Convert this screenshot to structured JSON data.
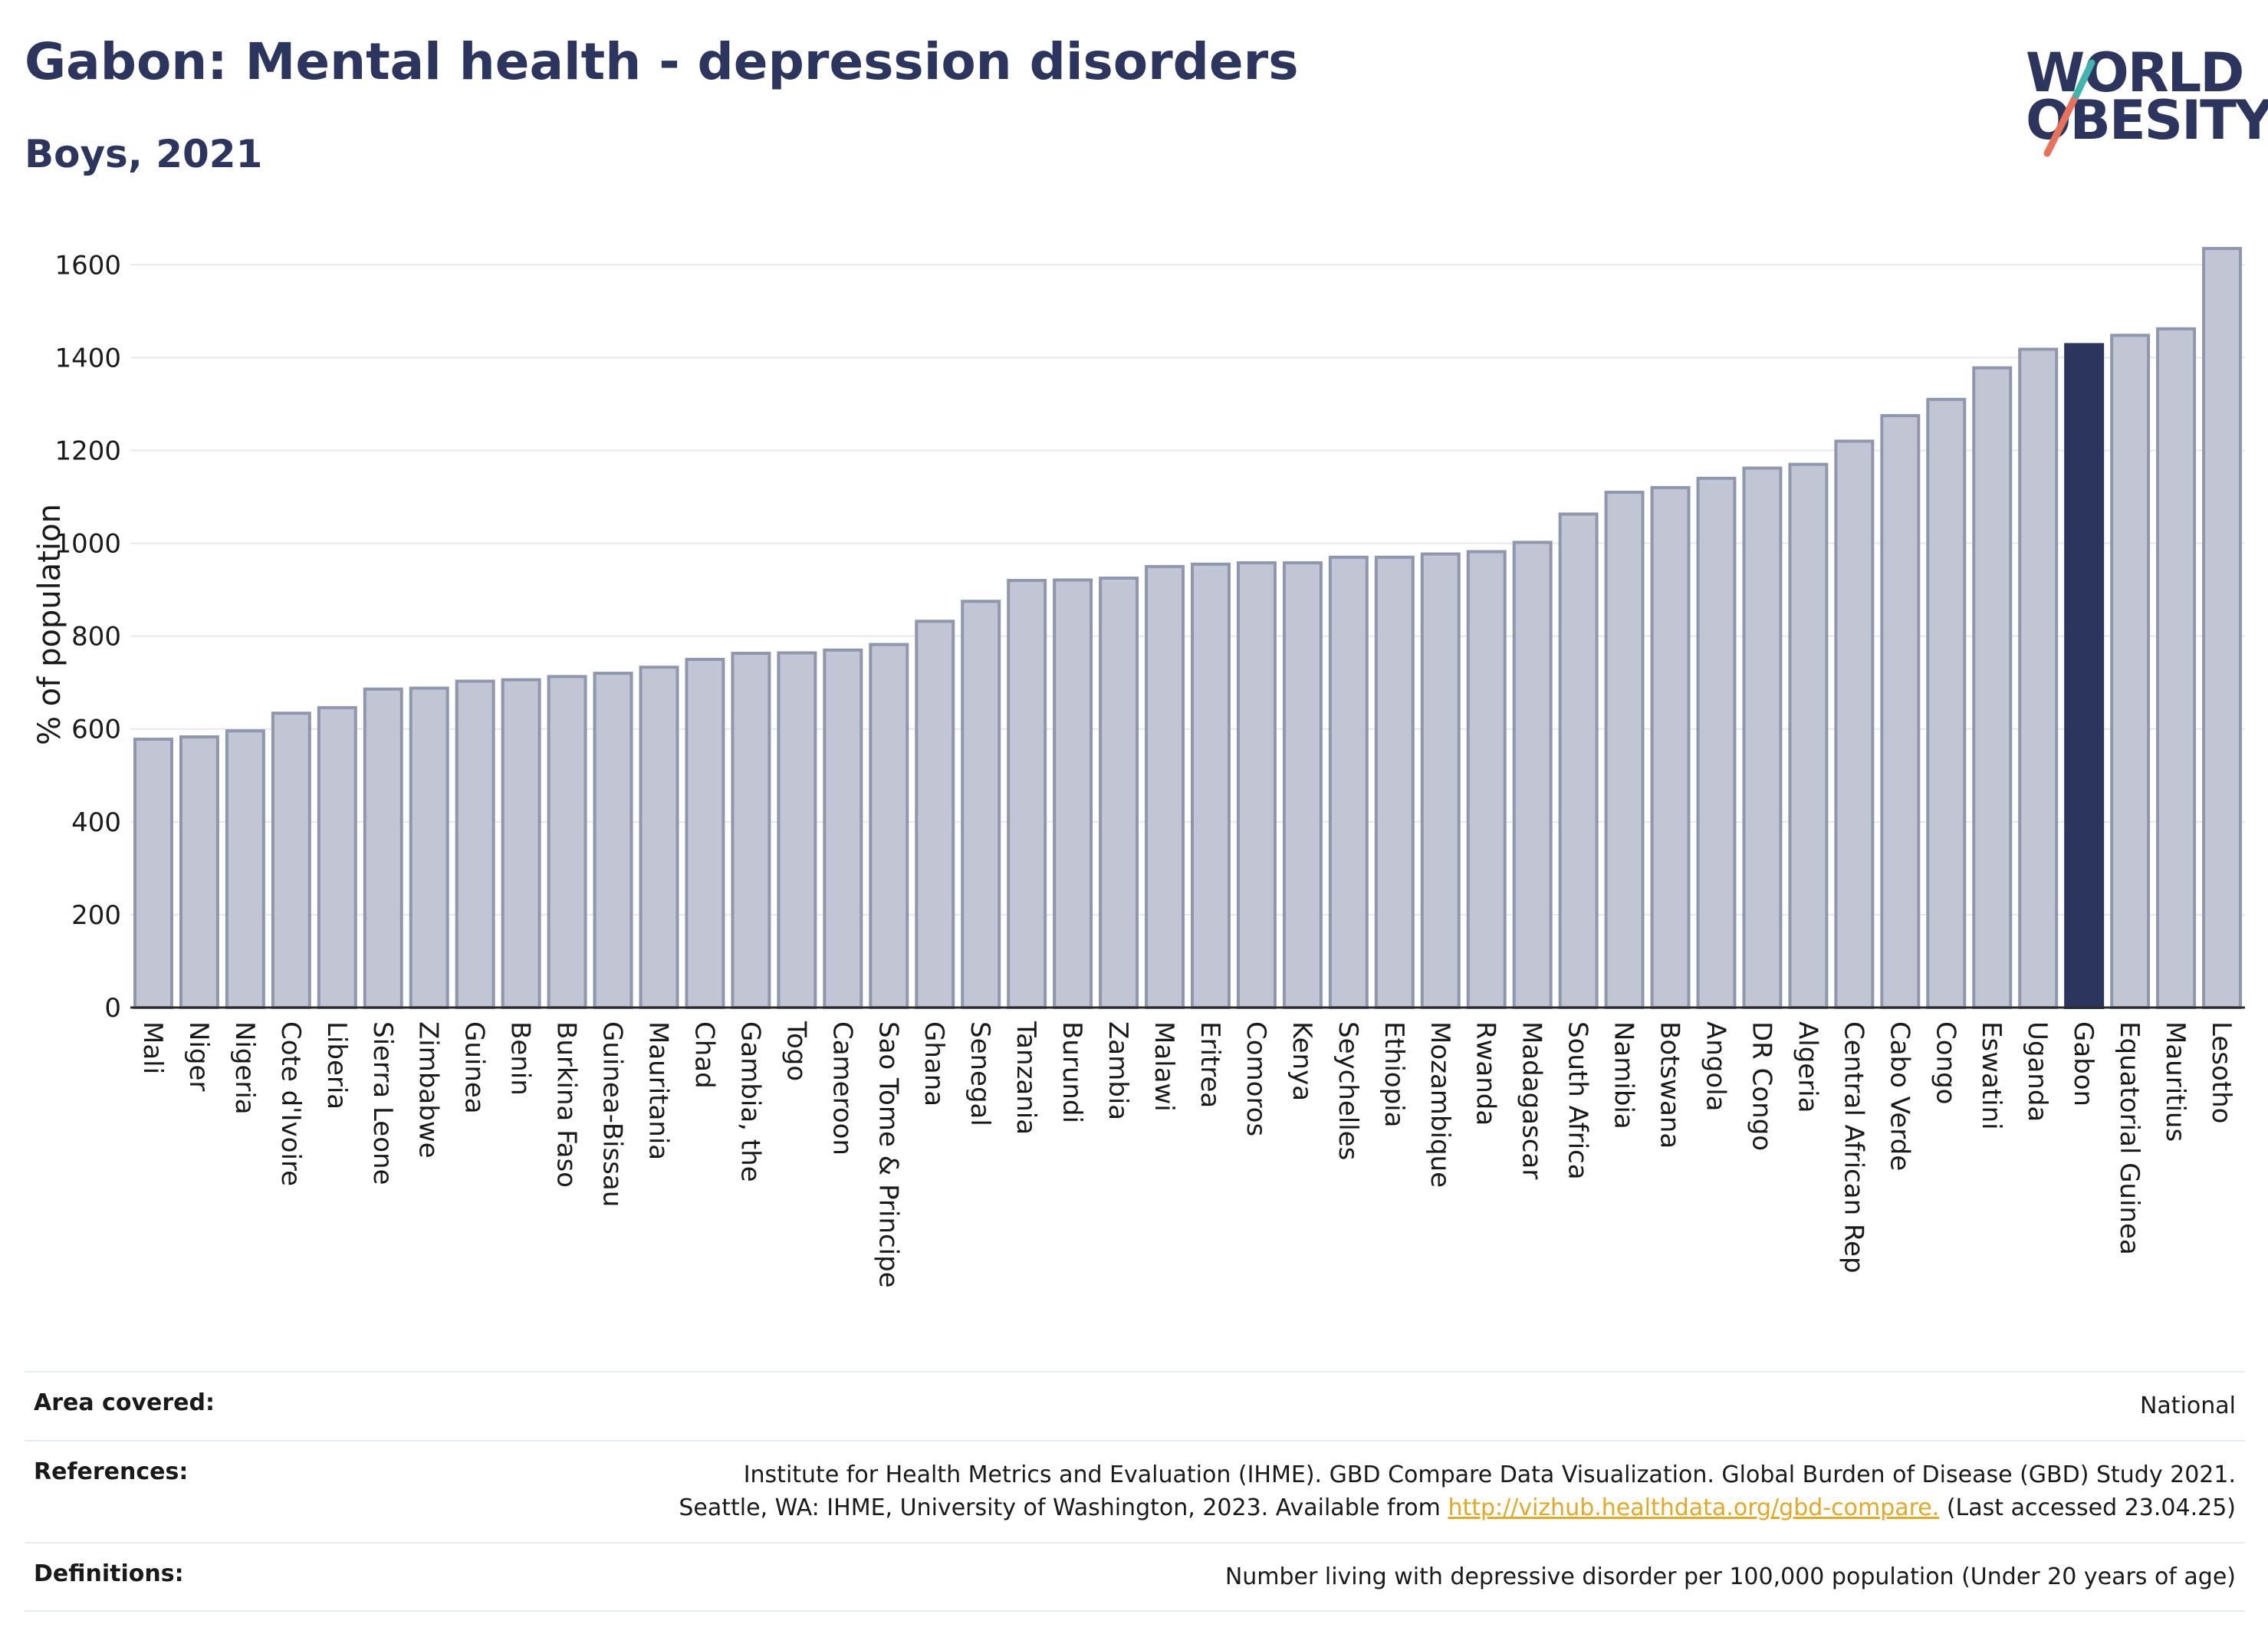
{
  "header": {
    "title": "Gabon: Mental health - depression disorders",
    "subtitle": "Boys, 2021"
  },
  "logo": {
    "line1": "WORLD",
    "line2": "OBESITY",
    "colors": [
      "#2b355e",
      "#e8715b",
      "#3fb5ad"
    ]
  },
  "colors": {
    "bar": "#c1c5d4",
    "bar_border": "#8f96ae",
    "highlight": "#2b355e",
    "grid": "#e6e8ee",
    "axis": "#2b2b2b"
  },
  "chart_data": {
    "type": "bar",
    "ylabel": "% of population",
    "ylim": [
      0,
      1650
    ],
    "yticks": [
      0,
      200,
      400,
      600,
      800,
      1000,
      1200,
      1400,
      1600
    ],
    "grid": true,
    "highlight": "Gabon",
    "categories": [
      "Mali",
      "Niger",
      "Nigeria",
      "Cote d'Ivoire",
      "Liberia",
      "Sierra Leone",
      "Zimbabwe",
      "Guinea",
      "Benin",
      "Burkina Faso",
      "Guinea-Bissau",
      "Mauritania",
      "Chad",
      "Gambia, the",
      "Togo",
      "Cameroon",
      "Sao Tome & Principe",
      "Ghana",
      "Senegal",
      "Tanzania",
      "Burundi",
      "Zambia",
      "Malawi",
      "Eritrea",
      "Comoros",
      "Kenya",
      "Seychelles",
      "Ethiopia",
      "Mozambique",
      "Rwanda",
      "Madagascar",
      "South Africa",
      "Namibia",
      "Botswana",
      "Angola",
      "DR Congo",
      "Algeria",
      "Central African Rep",
      "Cabo Verde",
      "Congo",
      "Eswatini",
      "Uganda",
      "Gabon",
      "Equatorial Guinea",
      "Mauritius",
      "Lesotho"
    ],
    "values": [
      578,
      583,
      596,
      634,
      646,
      686,
      688,
      703,
      706,
      713,
      720,
      733,
      750,
      763,
      764,
      770,
      782,
      832,
      875,
      920,
      921,
      925,
      950,
      955,
      958,
      958,
      970,
      970,
      977,
      982,
      1002,
      1063,
      1110,
      1120,
      1140,
      1162,
      1170,
      1220,
      1275,
      1310,
      1378,
      1418,
      1428,
      1448,
      1462,
      1635
    ]
  },
  "info": {
    "area_label": "Area covered:",
    "area_value": "National",
    "references_label": "References:",
    "references_line1": "Institute for Health Metrics and Evaluation (IHME). GBD Compare Data Visualization. Global Burden of Disease (GBD) Study 2021.",
    "references_line2_pre": "Seattle, WA: IHME, University of Washington, 2023. Available from",
    "references_link": "http://vizhub.healthdata.org/gbd-compare.",
    "references_line2_post": "(Last accessed 23.04.25)",
    "definitions_label": "Definitions:",
    "definitions_value": "Number living with depressive disorder per 100,000 population (Under 20 years of age)"
  }
}
